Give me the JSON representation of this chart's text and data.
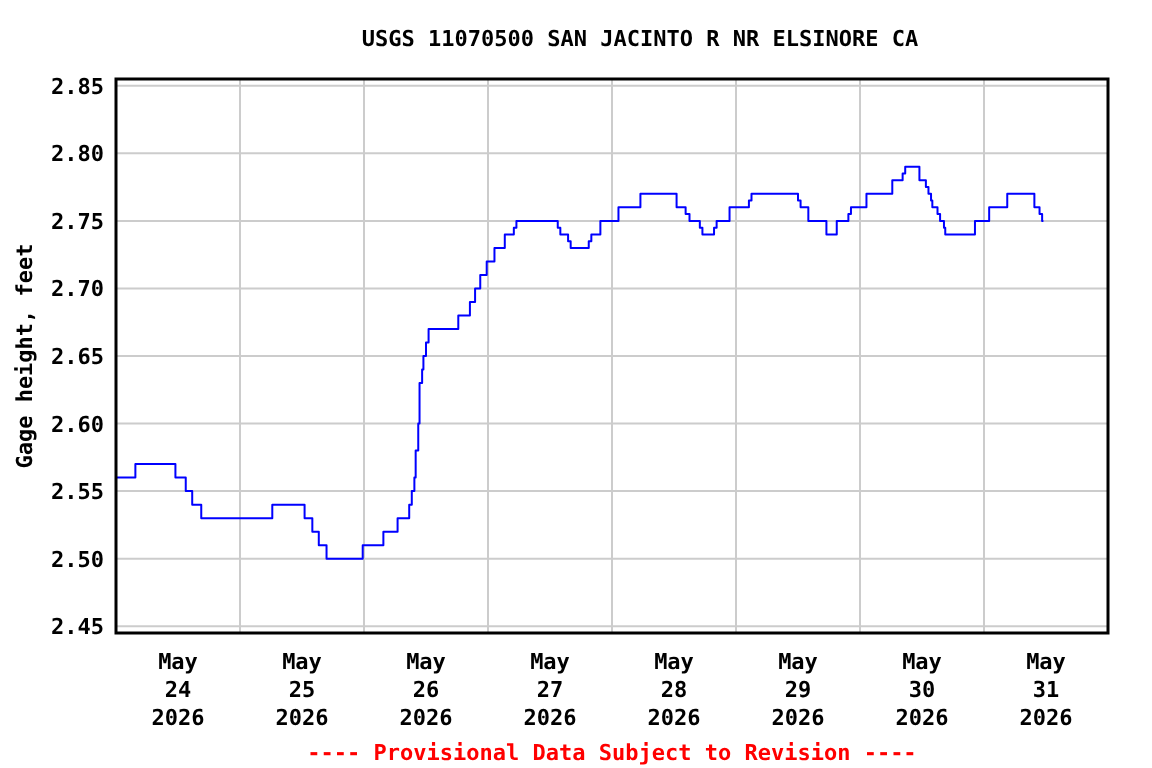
{
  "chart_data": {
    "type": "step",
    "title": "USGS 11070500 SAN JACINTO R NR ELSINORE CA",
    "ylabel": "Gage height, feet",
    "annotations": [
      "---- Provisional Data Subject to Revision ----"
    ],
    "x": [
      "2026-05-24T00:00",
      "2026-05-24T03:45",
      "2026-05-24T11:30",
      "2026-05-24T13:30",
      "2026-05-24T14:45",
      "2026-05-24T16:30",
      "2026-05-25T06:15",
      "2026-05-25T12:30",
      "2026-05-25T14:00",
      "2026-05-25T15:15",
      "2026-05-25T16:45",
      "2026-05-25T23:45",
      "2026-05-26T03:45",
      "2026-05-26T06:30",
      "2026-05-26T08:45",
      "2026-05-26T09:15",
      "2026-05-26T09:45",
      "2026-05-26T10:00",
      "2026-05-26T10:30",
      "2026-05-26T10:45",
      "2026-05-26T11:15",
      "2026-05-26T11:30",
      "2026-05-26T12:00",
      "2026-05-26T12:30",
      "2026-05-26T18:15",
      "2026-05-26T20:30",
      "2026-05-26T21:30",
      "2026-05-26T22:30",
      "2026-05-26T23:45",
      "2026-05-27T01:15",
      "2026-05-27T03:15",
      "2026-05-27T05:00",
      "2026-05-27T05:30",
      "2026-05-27T13:30",
      "2026-05-27T14:00",
      "2026-05-27T15:30",
      "2026-05-27T16:00",
      "2026-05-27T19:30",
      "2026-05-27T20:00",
      "2026-05-27T21:45",
      "2026-05-28T01:15",
      "2026-05-28T05:30",
      "2026-05-28T12:30",
      "2026-05-28T14:15",
      "2026-05-28T15:00",
      "2026-05-28T17:00",
      "2026-05-28T17:30",
      "2026-05-28T19:45",
      "2026-05-28T20:15",
      "2026-05-28T22:45",
      "2026-05-29T02:30",
      "2026-05-29T03:00",
      "2026-05-29T12:00",
      "2026-05-29T12:30",
      "2026-05-29T14:00",
      "2026-05-29T17:30",
      "2026-05-29T19:30",
      "2026-05-29T21:45",
      "2026-05-29T22:15",
      "2026-05-30T01:15",
      "2026-05-30T06:15",
      "2026-05-30T08:15",
      "2026-05-30T08:45",
      "2026-05-30T11:30",
      "2026-05-30T12:45",
      "2026-05-30T13:15",
      "2026-05-30T13:45",
      "2026-05-30T14:00",
      "2026-05-30T15:00",
      "2026-05-30T15:30",
      "2026-05-30T16:15",
      "2026-05-30T16:30",
      "2026-05-30T22:15",
      "2026-05-31T01:00",
      "2026-05-31T04:30",
      "2026-05-31T09:45",
      "2026-05-31T10:45",
      "2026-05-31T11:15",
      "2026-05-31T11:30"
    ],
    "series": [
      {
        "color": "#0000ff",
        "values": [
          2.56,
          2.57,
          2.56,
          2.55,
          2.54,
          2.53,
          2.54,
          2.53,
          2.52,
          2.51,
          2.5,
          2.51,
          2.52,
          2.53,
          2.54,
          2.55,
          2.56,
          2.58,
          2.6,
          2.63,
          2.64,
          2.65,
          2.66,
          2.67,
          2.68,
          2.69,
          2.7,
          2.71,
          2.72,
          2.73,
          2.74,
          2.745,
          2.75,
          2.745,
          2.74,
          2.735,
          2.73,
          2.735,
          2.74,
          2.75,
          2.76,
          2.77,
          2.76,
          2.755,
          2.75,
          2.745,
          2.74,
          2.745,
          2.75,
          2.76,
          2.765,
          2.77,
          2.765,
          2.76,
          2.75,
          2.74,
          2.75,
          2.755,
          2.76,
          2.77,
          2.78,
          2.785,
          2.79,
          2.78,
          2.775,
          2.77,
          2.765,
          2.76,
          2.755,
          2.75,
          2.745,
          2.74,
          2.75,
          2.76,
          2.77,
          2.76,
          2.755,
          2.75,
          2.75
        ]
      }
    ],
    "xlim": [
      "2026-05-24",
      "2026-06-01"
    ],
    "xticks": [
      {
        "value": "2026-05-24",
        "label": null
      },
      {
        "value": "2026-05-24T12:00",
        "label": "May\n24\n2026"
      },
      {
        "value": "2026-05-25",
        "label": null
      },
      {
        "value": "2026-05-25T12:00",
        "label": "May\n25\n2026"
      },
      {
        "value": "2026-05-26",
        "label": null
      },
      {
        "value": "2026-05-26T12:00",
        "label": "May\n26\n2026"
      },
      {
        "value": "2026-05-27",
        "label": null
      },
      {
        "value": "2026-05-27T12:00",
        "label": "May\n27\n2026"
      },
      {
        "value": "2026-05-28",
        "label": null
      },
      {
        "value": "2026-05-28T12:00",
        "label": "May\n28\n2026"
      },
      {
        "value": "2026-05-29",
        "label": null
      },
      {
        "value": "2026-05-29T12:00",
        "label": "May\n29\n2026"
      },
      {
        "value": "2026-05-30",
        "label": null
      },
      {
        "value": "2026-05-30T12:00",
        "label": "May\n30\n2026"
      },
      {
        "value": "2026-05-31",
        "label": null
      },
      {
        "value": "2026-05-31T12:00",
        "label": "May\n31\n2026"
      },
      {
        "value": "2026-06-01",
        "label": null
      }
    ],
    "ylim": [
      2.445,
      2.855
    ],
    "yticks": [
      {
        "value": 2.45,
        "label": "2.45"
      },
      {
        "value": 2.5,
        "label": "2.50"
      },
      {
        "value": 2.55,
        "label": "2.55"
      },
      {
        "value": 2.6,
        "label": "2.60"
      },
      {
        "value": 2.65,
        "label": "2.65"
      },
      {
        "value": 2.7,
        "label": "2.70"
      },
      {
        "value": 2.75,
        "label": "2.75"
      },
      {
        "value": 2.8,
        "label": "2.80"
      },
      {
        "value": 2.85,
        "label": "2.85"
      }
    ],
    "grid": true,
    "line_style": "solid"
  }
}
